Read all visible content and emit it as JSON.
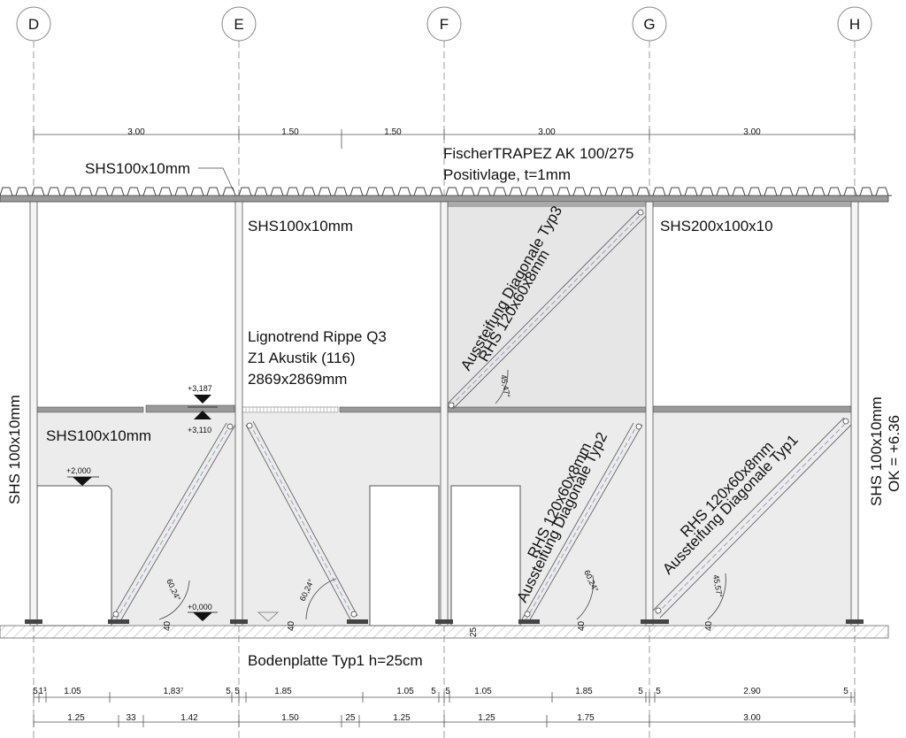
{
  "grid_axes": [
    "D",
    "E",
    "F",
    "G",
    "H"
  ],
  "dims_top": [
    "3.00",
    "1.50",
    "1.50",
    "3.00",
    "3.00"
  ],
  "labels": {
    "roof_deck_1": "FischerTRAPEZ AK 100/275",
    "roof_deck_2": "Positivlage, t=1mm",
    "shs_top_left": "SHS100x10mm",
    "shs_e_top": "SHS100x10mm",
    "shs_g_top": "SHS200x100x10",
    "shs_left_mid": "SHS100x10mm",
    "shs_left_vert": "SHS 100x10mm",
    "shs_right_vert_1": "SHS 100x10mm",
    "shs_right_vert_2": "OK = +6.36",
    "rippe_1": "Lignotrend Rippe Q3",
    "rippe_2": "Z1 Akustik (116)",
    "rippe_3": "2869x2869mm",
    "diag3_1": "RHS 120x60x8mm",
    "diag3_2": "Aussteifung Diagonale Typ3",
    "diag2_1": "RHS 120x60x8mm",
    "diag2_2": "Aussteifung Diagonale Typ2",
    "diag1_1": "RHS 120x60x8mm",
    "diag1_2": "Aussteifung Diagonale Typ1",
    "base": "Bodenplatte Typ1 h=25cm"
  },
  "levels": {
    "l3187": "+3,187",
    "l3110": "+3,110",
    "l2000": "+2,000",
    "l0000": "+0,000"
  },
  "angles": {
    "a1": "60,24°",
    "a2": "60,24°",
    "a3": "45,47°",
    "a4": "60,24°",
    "a5": "45,57°"
  },
  "small_dims": {
    "d40a": "40",
    "d40b": "40",
    "d40c": "40",
    "d40d": "40",
    "d25": "25"
  },
  "dims_bottom_1": [
    "5",
    "1³",
    "1.05",
    "1,83⁷",
    "5",
    "5",
    "1.85",
    "1.05",
    "5",
    "5",
    "1.05",
    "1.85",
    "5",
    "5",
    "2.90",
    "5"
  ],
  "dims_bottom_2": [
    "1.25",
    "33",
    "1.42",
    "1.50",
    "25",
    "1.25",
    "1.25",
    "1.75",
    "3.00"
  ]
}
